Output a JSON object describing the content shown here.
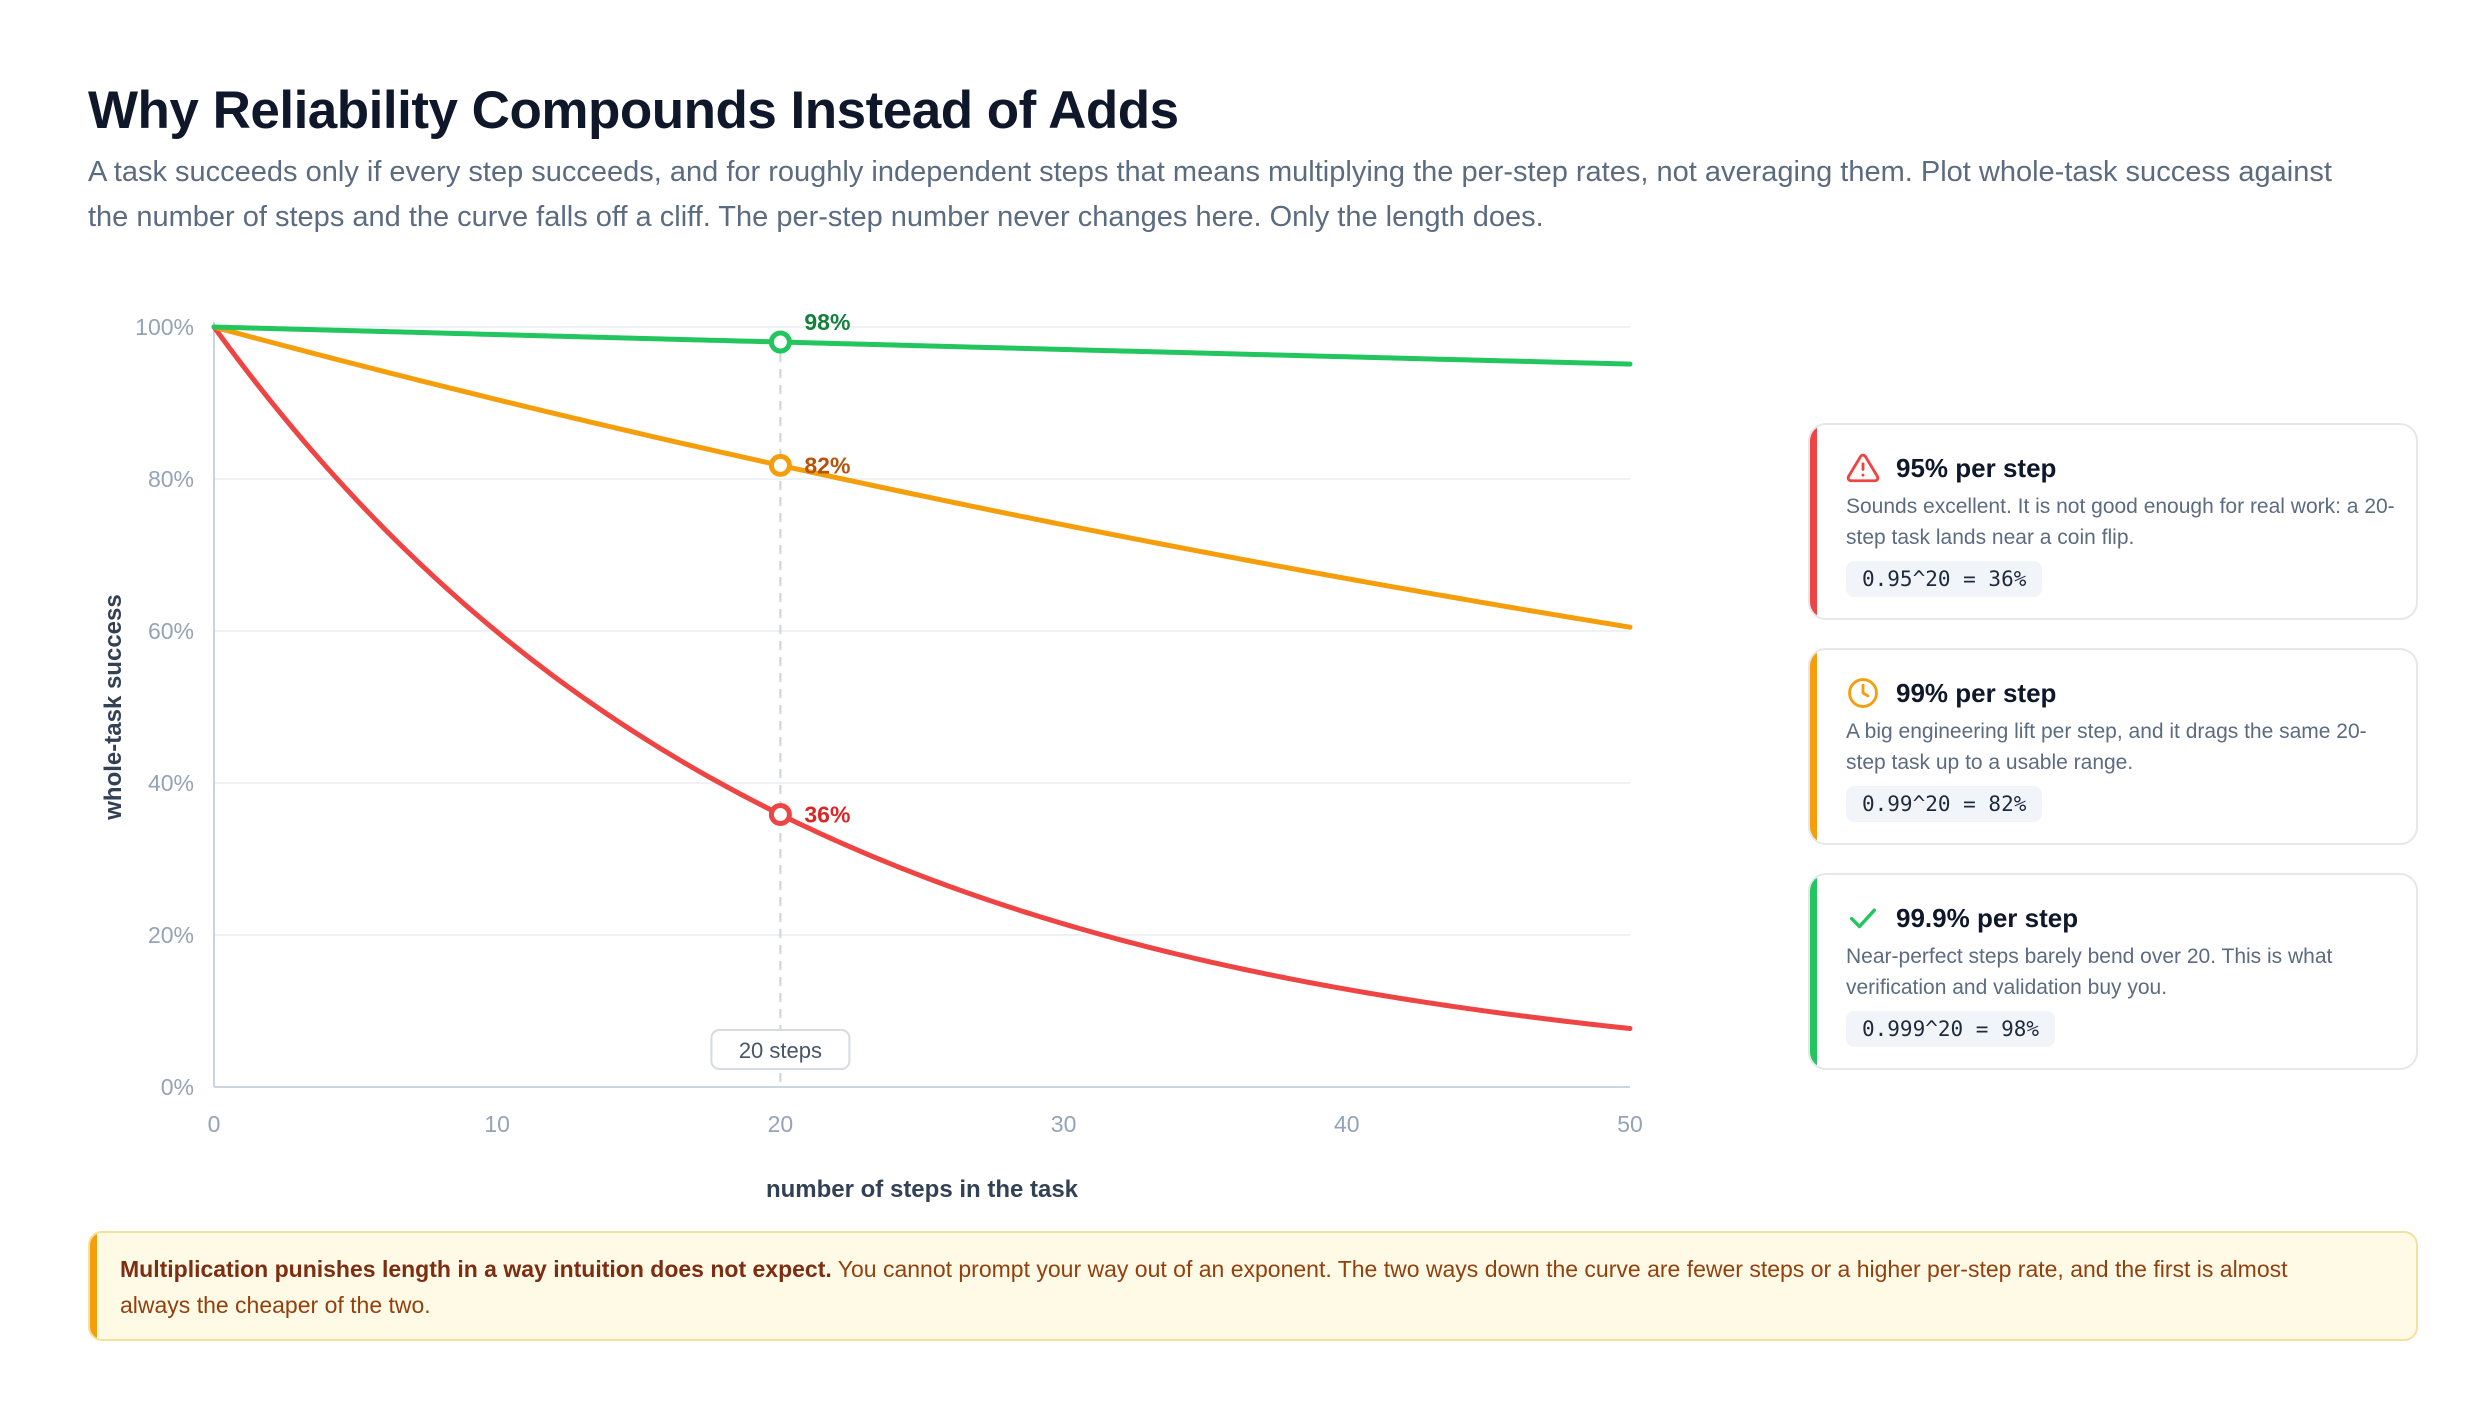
{
  "header": {
    "title": "Why Reliability Compounds Instead of Adds",
    "subtitle": "A task succeeds only if every step succeeds, and for roughly independent steps that means multiplying the per-step rates, not averaging them. Plot whole-task success against the number of steps and the curve falls off a cliff. The per-step number never changes here. Only the length does."
  },
  "chart_data": {
    "type": "line",
    "xlabel": "number of steps in the task",
    "ylabel": "whole-task success",
    "xlim": [
      0,
      50
    ],
    "ylim": [
      0,
      100
    ],
    "x_ticks": [
      "0",
      "10",
      "20",
      "30",
      "40",
      "50"
    ],
    "y_ticks": [
      "0%",
      "20%",
      "40%",
      "60%",
      "80%",
      "100%"
    ],
    "grid": "horizontal",
    "series": [
      {
        "per_step_rate": 0.95,
        "color": "#ef4444",
        "x": [
          0,
          5,
          10,
          15,
          20,
          25,
          30,
          35,
          40,
          45,
          50
        ],
        "values": [
          100,
          77.4,
          59.9,
          46.3,
          35.8,
          27.7,
          21.5,
          16.6,
          12.9,
          9.9,
          7.7
        ]
      },
      {
        "per_step_rate": 0.99,
        "color": "#f59e0b",
        "x": [
          0,
          5,
          10,
          15,
          20,
          25,
          30,
          35,
          40,
          45,
          50
        ],
        "values": [
          100,
          95.1,
          90.4,
          86.0,
          81.8,
          77.8,
          74.0,
          70.3,
          66.9,
          63.6,
          60.5
        ]
      },
      {
        "per_step_rate": 0.999,
        "color": "#22c55e",
        "x": [
          0,
          5,
          10,
          15,
          20,
          25,
          30,
          35,
          40,
          45,
          50
        ],
        "values": [
          100,
          99.5,
          99.0,
          98.5,
          98.0,
          97.5,
          97.0,
          96.6,
          96.1,
          95.6,
          95.1
        ]
      }
    ],
    "marker": {
      "x": 20,
      "label": "20 steps"
    },
    "annotations": [
      {
        "x": 20,
        "y": 98,
        "label": "98%",
        "color": "#15803d"
      },
      {
        "x": 20,
        "y": 82,
        "label": "82%",
        "color": "#b45309"
      },
      {
        "x": 20,
        "y": 36,
        "label": "36%",
        "color": "#dc2626"
      }
    ]
  },
  "cards": [
    {
      "title": "95% per step",
      "description": "Sounds excellent. It is not good enough for real work: a 20-step task lands near a coin flip.",
      "formula": "0.95^20 = 36%",
      "color": "#ef4444",
      "icon": "warning-icon"
    },
    {
      "title": "99% per step",
      "description": "A big engineering lift per step, and it drags the same 20-step task up to a usable range.",
      "formula": "0.99^20 = 82%",
      "color": "#f59e0b",
      "icon": "clock-icon"
    },
    {
      "title": "99.9% per step",
      "description": "Near-perfect steps barely bend over 20. This is what verification and validation buy you.",
      "formula": "0.999^20 = 98%",
      "color": "#22c55e",
      "icon": "check-icon"
    }
  ],
  "callout": {
    "bold": "Multiplication punishes length in a way intuition does not expect.",
    "text": " You cannot prompt your way out of an exponent. The two ways down the curve are fewer steps or a higher per-step rate, and the first is almost always the cheaper of the two."
  }
}
